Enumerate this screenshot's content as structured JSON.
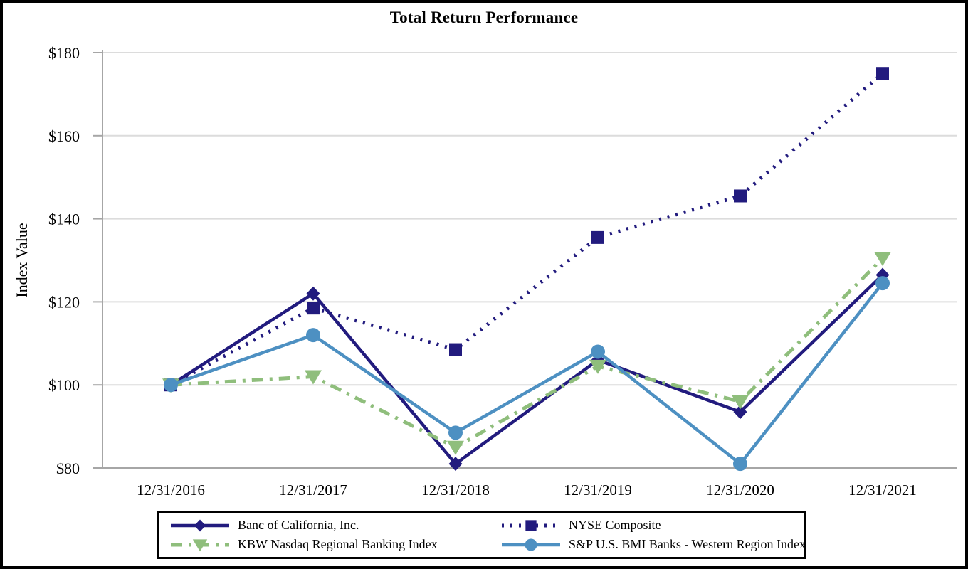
{
  "title": "Total Return Performance",
  "chart_data": {
    "type": "line",
    "title": "Total Return Performance",
    "xlabel": "",
    "ylabel": "Index Value",
    "x": [
      "12/31/2016",
      "12/31/2017",
      "12/31/2018",
      "12/31/2019",
      "12/31/2020",
      "12/31/2021"
    ],
    "ylim": [
      80,
      180
    ],
    "ytick_values": [
      80,
      100,
      120,
      140,
      160,
      180
    ],
    "ytick_labels": [
      "$80",
      "$100",
      "$120",
      "$140",
      "$160",
      "$180"
    ],
    "grid": true,
    "legend_position": "bottom",
    "series": [
      {
        "name": "Banc of California, Inc.",
        "marker": "diamond",
        "line": "solid",
        "color": "#221B7E",
        "values": [
          100,
          122,
          81,
          106,
          93.5,
          126.5
        ]
      },
      {
        "name": "NYSE Composite",
        "marker": "square",
        "line": "dotted",
        "color": "#221B7E",
        "values": [
          100,
          118.5,
          108.5,
          135.5,
          145.5,
          175
        ]
      },
      {
        "name": "KBW Nasdaq Regional Banking Index",
        "marker": "triangle-down",
        "line": "dash-dot",
        "color": "#8FBE7C",
        "values": [
          100,
          102,
          85,
          104.5,
          96,
          130.5
        ]
      },
      {
        "name": "S&P U.S. BMI Banks - Western Region Index",
        "marker": "circle",
        "line": "solid",
        "color": "#4D90C2",
        "values": [
          100,
          112,
          88.5,
          108,
          81,
          124.5
        ]
      }
    ]
  },
  "colors": {
    "gridline": "#DCDCDC",
    "axis": "#A6A6A6",
    "text": "#000000",
    "frame": "#000000"
  }
}
